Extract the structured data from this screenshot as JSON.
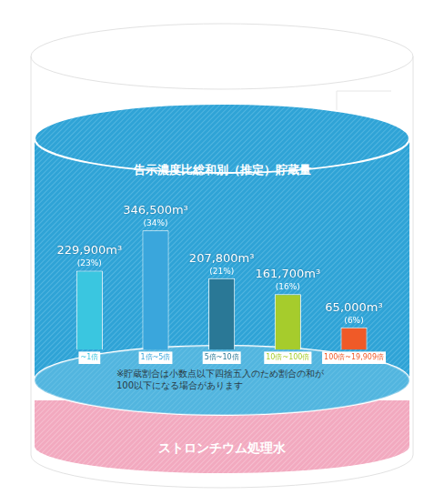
{
  "chart_data": {
    "type": "bar",
    "title": "告示濃度比総和別（推定）貯蔵量",
    "categories": [
      "~1倍",
      "1倍~5倍",
      "5倍~10倍",
      "10倍~100倍",
      "100倍~19,909倍"
    ],
    "values": [
      229900,
      346500,
      207800,
      161700,
      65000
    ],
    "value_labels": [
      "229,900m³",
      "346,500m³",
      "207,800m³",
      "161,700m³",
      "65,000m³"
    ],
    "shares": [
      23,
      34,
      21,
      16,
      6
    ],
    "share_labels": [
      "(23%)",
      "(34%)",
      "(21%)",
      "(16%)",
      "(6%)"
    ],
    "colors": [
      "#3ac6e0",
      "#3aa6dc",
      "#2a7896",
      "#a6cc2c",
      "#f05a28"
    ],
    "data_labels": true,
    "grid": false,
    "tick_labels": "x",
    "note": "※貯蔵割合は小数点以下四捨五入のため割合の和が100以下になる場合があります",
    "footer": "ストロンチウム処理水"
  }
}
